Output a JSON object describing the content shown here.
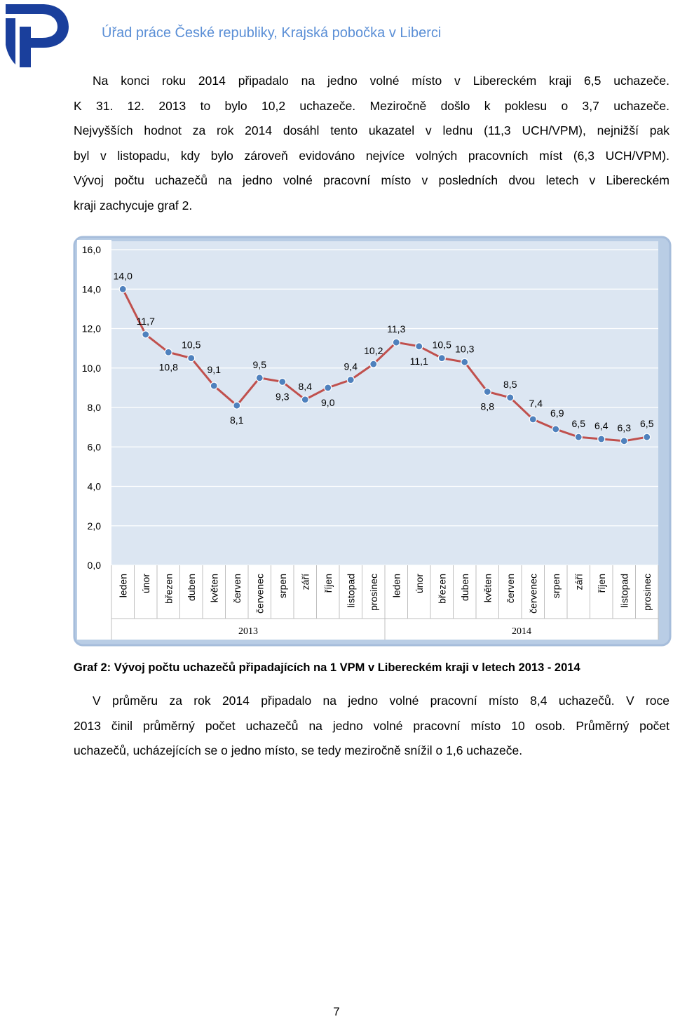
{
  "header": {
    "title": "Úřad práce České republiky, Krajská pobočka v Liberci"
  },
  "paragraph1": {
    "lines": [
      "Na konci roku 2014 připadalo na jedno volné místo v Libereckém kraji 6,5 uchazeče.",
      "K 31. 12. 2013 to bylo 10,2 uchazeče. Meziročně došlo k poklesu o 3,7 uchazeče.",
      "Nejvyšších hodnot za rok 2014 dosáhl tento ukazatel v lednu (11,3 UCH/VPM), nejnižší pak",
      "byl v listopadu, kdy bylo zároveň evidováno nejvíce volných pracovních míst (6,3 UCH/VPM).",
      "Vývoj počtu uchazečů na jedno volné pracovní místo v posledních dvou letech v Libereckém",
      "kraji zachycuje graf 2."
    ]
  },
  "chart_data": {
    "type": "line",
    "categories": [
      "leden",
      "únor",
      "březen",
      "duben",
      "květen",
      "červen",
      "červenec",
      "srpen",
      "září",
      "říjen",
      "listopad",
      "prosinec",
      "leden",
      "únor",
      "březen",
      "duben",
      "květen",
      "červen",
      "červenec",
      "srpen",
      "září",
      "říjen",
      "listopad",
      "prosinec"
    ],
    "groups": [
      {
        "label": "2013"
      },
      {
        "label": "2014"
      }
    ],
    "values": [
      14.0,
      11.7,
      10.8,
      10.5,
      9.1,
      8.1,
      9.5,
      9.3,
      8.4,
      9.0,
      9.4,
      10.2,
      11.3,
      11.1,
      10.5,
      10.3,
      8.8,
      8.5,
      7.4,
      6.9,
      6.5,
      6.4,
      6.3,
      6.5
    ],
    "value_labels": [
      "14,0",
      "11,7",
      "10,8",
      "10,5",
      "9,1",
      "8,1",
      "9,5",
      "9,3",
      "8,4",
      "9,0",
      "9,4",
      "10,2",
      "11,3",
      "11,1",
      "10,5",
      "10,3",
      "8,8",
      "8,5",
      "7,4",
      "6,9",
      "6,5",
      "6,4",
      "6,3",
      "6,5"
    ],
    "yticks": [
      "0,0",
      "2,0",
      "4,0",
      "6,0",
      "8,0",
      "10,0",
      "12,0",
      "14,0",
      "16,0"
    ],
    "ylim": [
      0,
      16
    ],
    "grid": true,
    "colors": {
      "line": "#c0504d",
      "marker": "#4f81bd",
      "plot_bg": "#dce6f2",
      "frame": "#b9cde5"
    }
  },
  "caption": "Graf 2: Vývoj počtu uchazečů připadajících na 1 VPM v Libereckém kraji v letech 2013 - 2014",
  "paragraph2": {
    "lines": [
      "V průměru za rok 2014 připadalo na jedno volné pracovní místo 8,4 uchazečů. V roce",
      "2013 činil průměrný počet uchazečů na jedno volné pracovní místo 10 osob. Průměrný počet",
      "uchazečů, ucházejících se o jedno místo, se tedy meziročně snížil o 1,6 uchazeče."
    ]
  },
  "page_number": "7"
}
